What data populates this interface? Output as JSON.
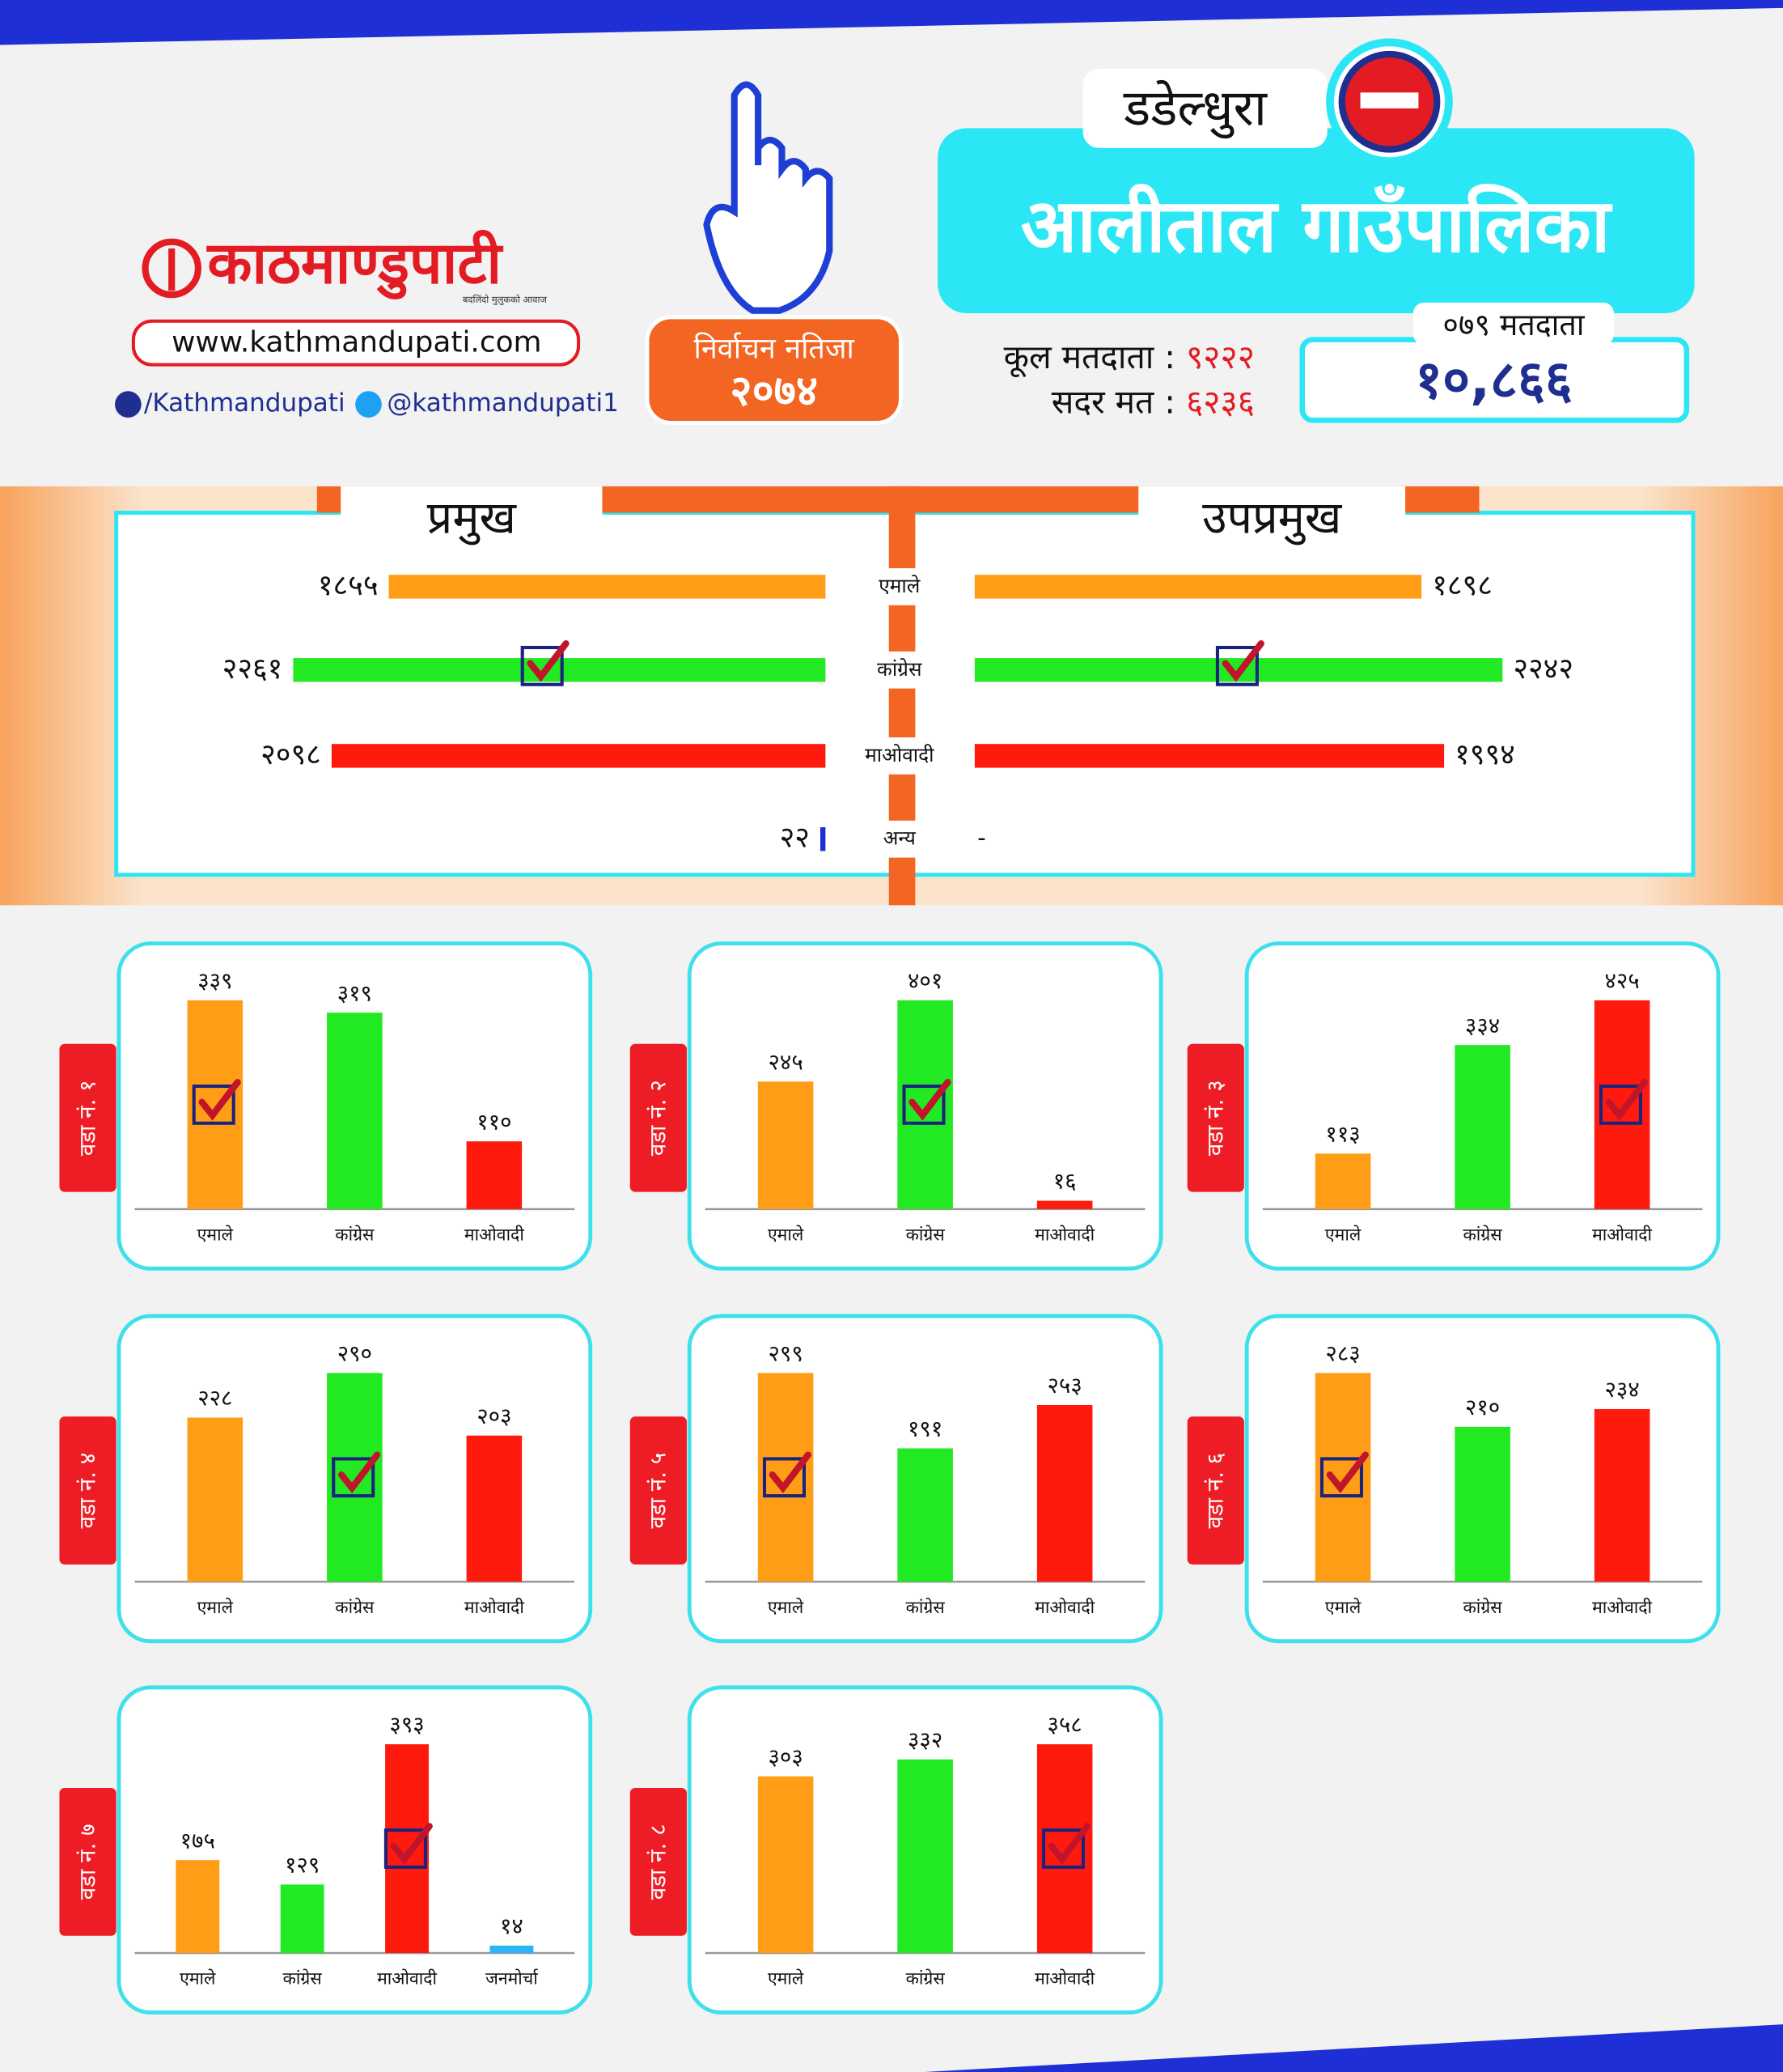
{
  "header": {
    "logo": "काठमाण्डुपाटी",
    "tagline": "बदलिंदो मुलुकको आवाज",
    "website": "www.kathmandupati.com",
    "facebook": "/Kathmandupati",
    "twitter": "@kathmandupati1",
    "badge_title": "निर्वाचन नतिजा",
    "badge_year": "२०७४",
    "district": "डडेल्धुरा",
    "municipality": "आलीताल गाउँपालिका",
    "total_voters_label": "कूल मतदाता :",
    "total_voters": "९२२२",
    "valid_votes_label": "सदर मत :",
    "valid_votes": "६२३६",
    "voters_079_label": "०७९ मतदाता",
    "voters_079": "१०,८६६"
  },
  "chart_data": [
    {
      "type": "hbar",
      "categories": [
        "एमाले",
        "कांग्रेस",
        "माओवादी",
        "अन्य"
      ],
      "colors": [
        "#ff9e16",
        "#22ea22",
        "#ff1a0e",
        "#1e2fd6"
      ],
      "series": [
        {
          "name": "प्रमुख",
          "values": [
            1855,
            2261,
            2098,
            22
          ],
          "value_labels": [
            "१८५५",
            "२२६१",
            "२०९८",
            "२२"
          ],
          "checked": 1
        },
        {
          "name": "उपप्रमुख",
          "values": [
            1898,
            2242,
            1994,
            null
          ],
          "value_labels": [
            "१८९८",
            "२२४२",
            "१९९४",
            "-"
          ],
          "checked": 1
        }
      ]
    },
    {
      "type": "bar",
      "title": "वडा नं. १",
      "categories": [
        "एमाले",
        "कांग्रेस",
        "माओवादी"
      ],
      "colors": [
        "#ff9e16",
        "#22ea22",
        "#ff1a0e"
      ],
      "values": [
        339,
        319,
        110
      ],
      "value_labels": [
        "३३९",
        "३१९",
        "११०"
      ],
      "checked": 0
    },
    {
      "type": "bar",
      "title": "वडा नं. २",
      "categories": [
        "एमाले",
        "कांग्रेस",
        "माओवादी"
      ],
      "colors": [
        "#ff9e16",
        "#22ea22",
        "#ff1a0e"
      ],
      "values": [
        245,
        401,
        16
      ],
      "value_labels": [
        "२४५",
        "४०१",
        "१६"
      ],
      "checked": 1
    },
    {
      "type": "bar",
      "title": "वडा नं. ३",
      "categories": [
        "एमाले",
        "कांग्रेस",
        "माओवादी"
      ],
      "colors": [
        "#ff9e16",
        "#22ea22",
        "#ff1a0e"
      ],
      "values": [
        113,
        334,
        425
      ],
      "value_labels": [
        "११३",
        "३३४",
        "४२५"
      ],
      "checked": 2
    },
    {
      "type": "bar",
      "title": "वडा नं. ४",
      "categories": [
        "एमाले",
        "कांग्रेस",
        "माओवादी"
      ],
      "colors": [
        "#ff9e16",
        "#22ea22",
        "#ff1a0e"
      ],
      "values": [
        228,
        290,
        203
      ],
      "value_labels": [
        "२२८",
        "२९०",
        "२०३"
      ],
      "checked": 1
    },
    {
      "type": "bar",
      "title": "वडा नं. ५",
      "categories": [
        "एमाले",
        "कांग्रेस",
        "माओवादी"
      ],
      "colors": [
        "#ff9e16",
        "#22ea22",
        "#ff1a0e"
      ],
      "values": [
        299,
        191,
        253
      ],
      "value_labels": [
        "२९९",
        "१९१",
        "२५३"
      ],
      "checked": 0
    },
    {
      "type": "bar",
      "title": "वडा नं. ६",
      "categories": [
        "एमाले",
        "कांग्रेस",
        "माओवादी"
      ],
      "colors": [
        "#ff9e16",
        "#22ea22",
        "#ff1a0e"
      ],
      "values": [
        283,
        210,
        234
      ],
      "value_labels": [
        "२८३",
        "२१०",
        "२३४"
      ],
      "checked": 0
    },
    {
      "type": "bar",
      "title": "वडा नं. ७",
      "categories": [
        "एमाले",
        "कांग्रेस",
        "माओवादी",
        "जनमोर्चा"
      ],
      "colors": [
        "#ff9e16",
        "#22ea22",
        "#ff1a0e",
        "#29b6f6"
      ],
      "values": [
        175,
        129,
        393,
        14
      ],
      "value_labels": [
        "१७५",
        "१२९",
        "३९३",
        "१४"
      ],
      "checked": 2
    },
    {
      "type": "bar",
      "title": "वडा नं. ८",
      "categories": [
        "एमाले",
        "कांग्रेस",
        "माओवादी"
      ],
      "colors": [
        "#ff9e16",
        "#22ea22",
        "#ff1a0e"
      ],
      "values": [
        303,
        332,
        358
      ],
      "value_labels": [
        "३०३",
        "३३२",
        "३५८"
      ],
      "checked": 2
    }
  ]
}
